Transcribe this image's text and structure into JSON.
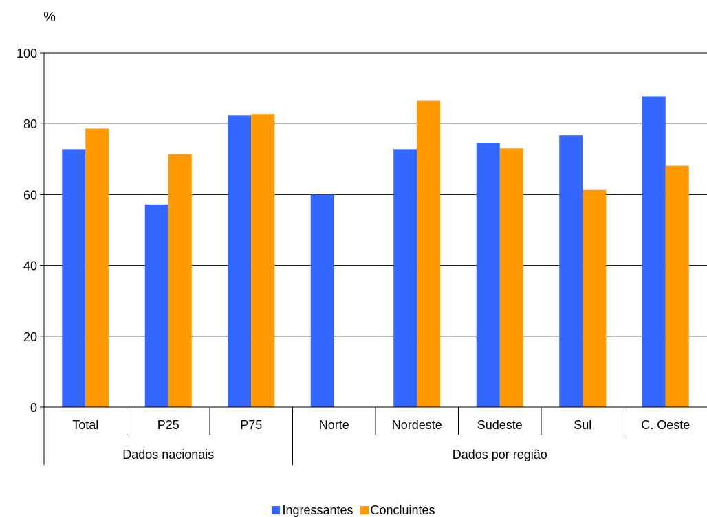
{
  "chart_data": {
    "type": "bar",
    "ylabel": "%",
    "ylim": [
      0,
      100
    ],
    "yticks": [
      0,
      20,
      40,
      60,
      80,
      100
    ],
    "grid": true,
    "legend_position": "bottom",
    "categories": [
      "Total",
      "P25",
      "P75",
      "Norte",
      "Nordeste",
      "Sudeste",
      "Sul",
      "C. Oeste"
    ],
    "groups": [
      {
        "label": "Dados nacionais",
        "categories": [
          "Total",
          "P25",
          "P75"
        ]
      },
      {
        "label": "Dados por região",
        "categories": [
          "Norte",
          "Nordeste",
          "Sudeste",
          "Sul",
          "C. Oeste"
        ]
      }
    ],
    "series": [
      {
        "name": "Ingressantes",
        "color": "#3366ff",
        "values": [
          72.8,
          57.2,
          82.3,
          60.0,
          72.8,
          74.6,
          76.7,
          87.7
        ]
      },
      {
        "name": "Concluintes",
        "color": "#ff9900",
        "values": [
          78.6,
          71.4,
          82.7,
          null,
          86.5,
          73.0,
          61.3,
          68.1
        ]
      }
    ]
  }
}
